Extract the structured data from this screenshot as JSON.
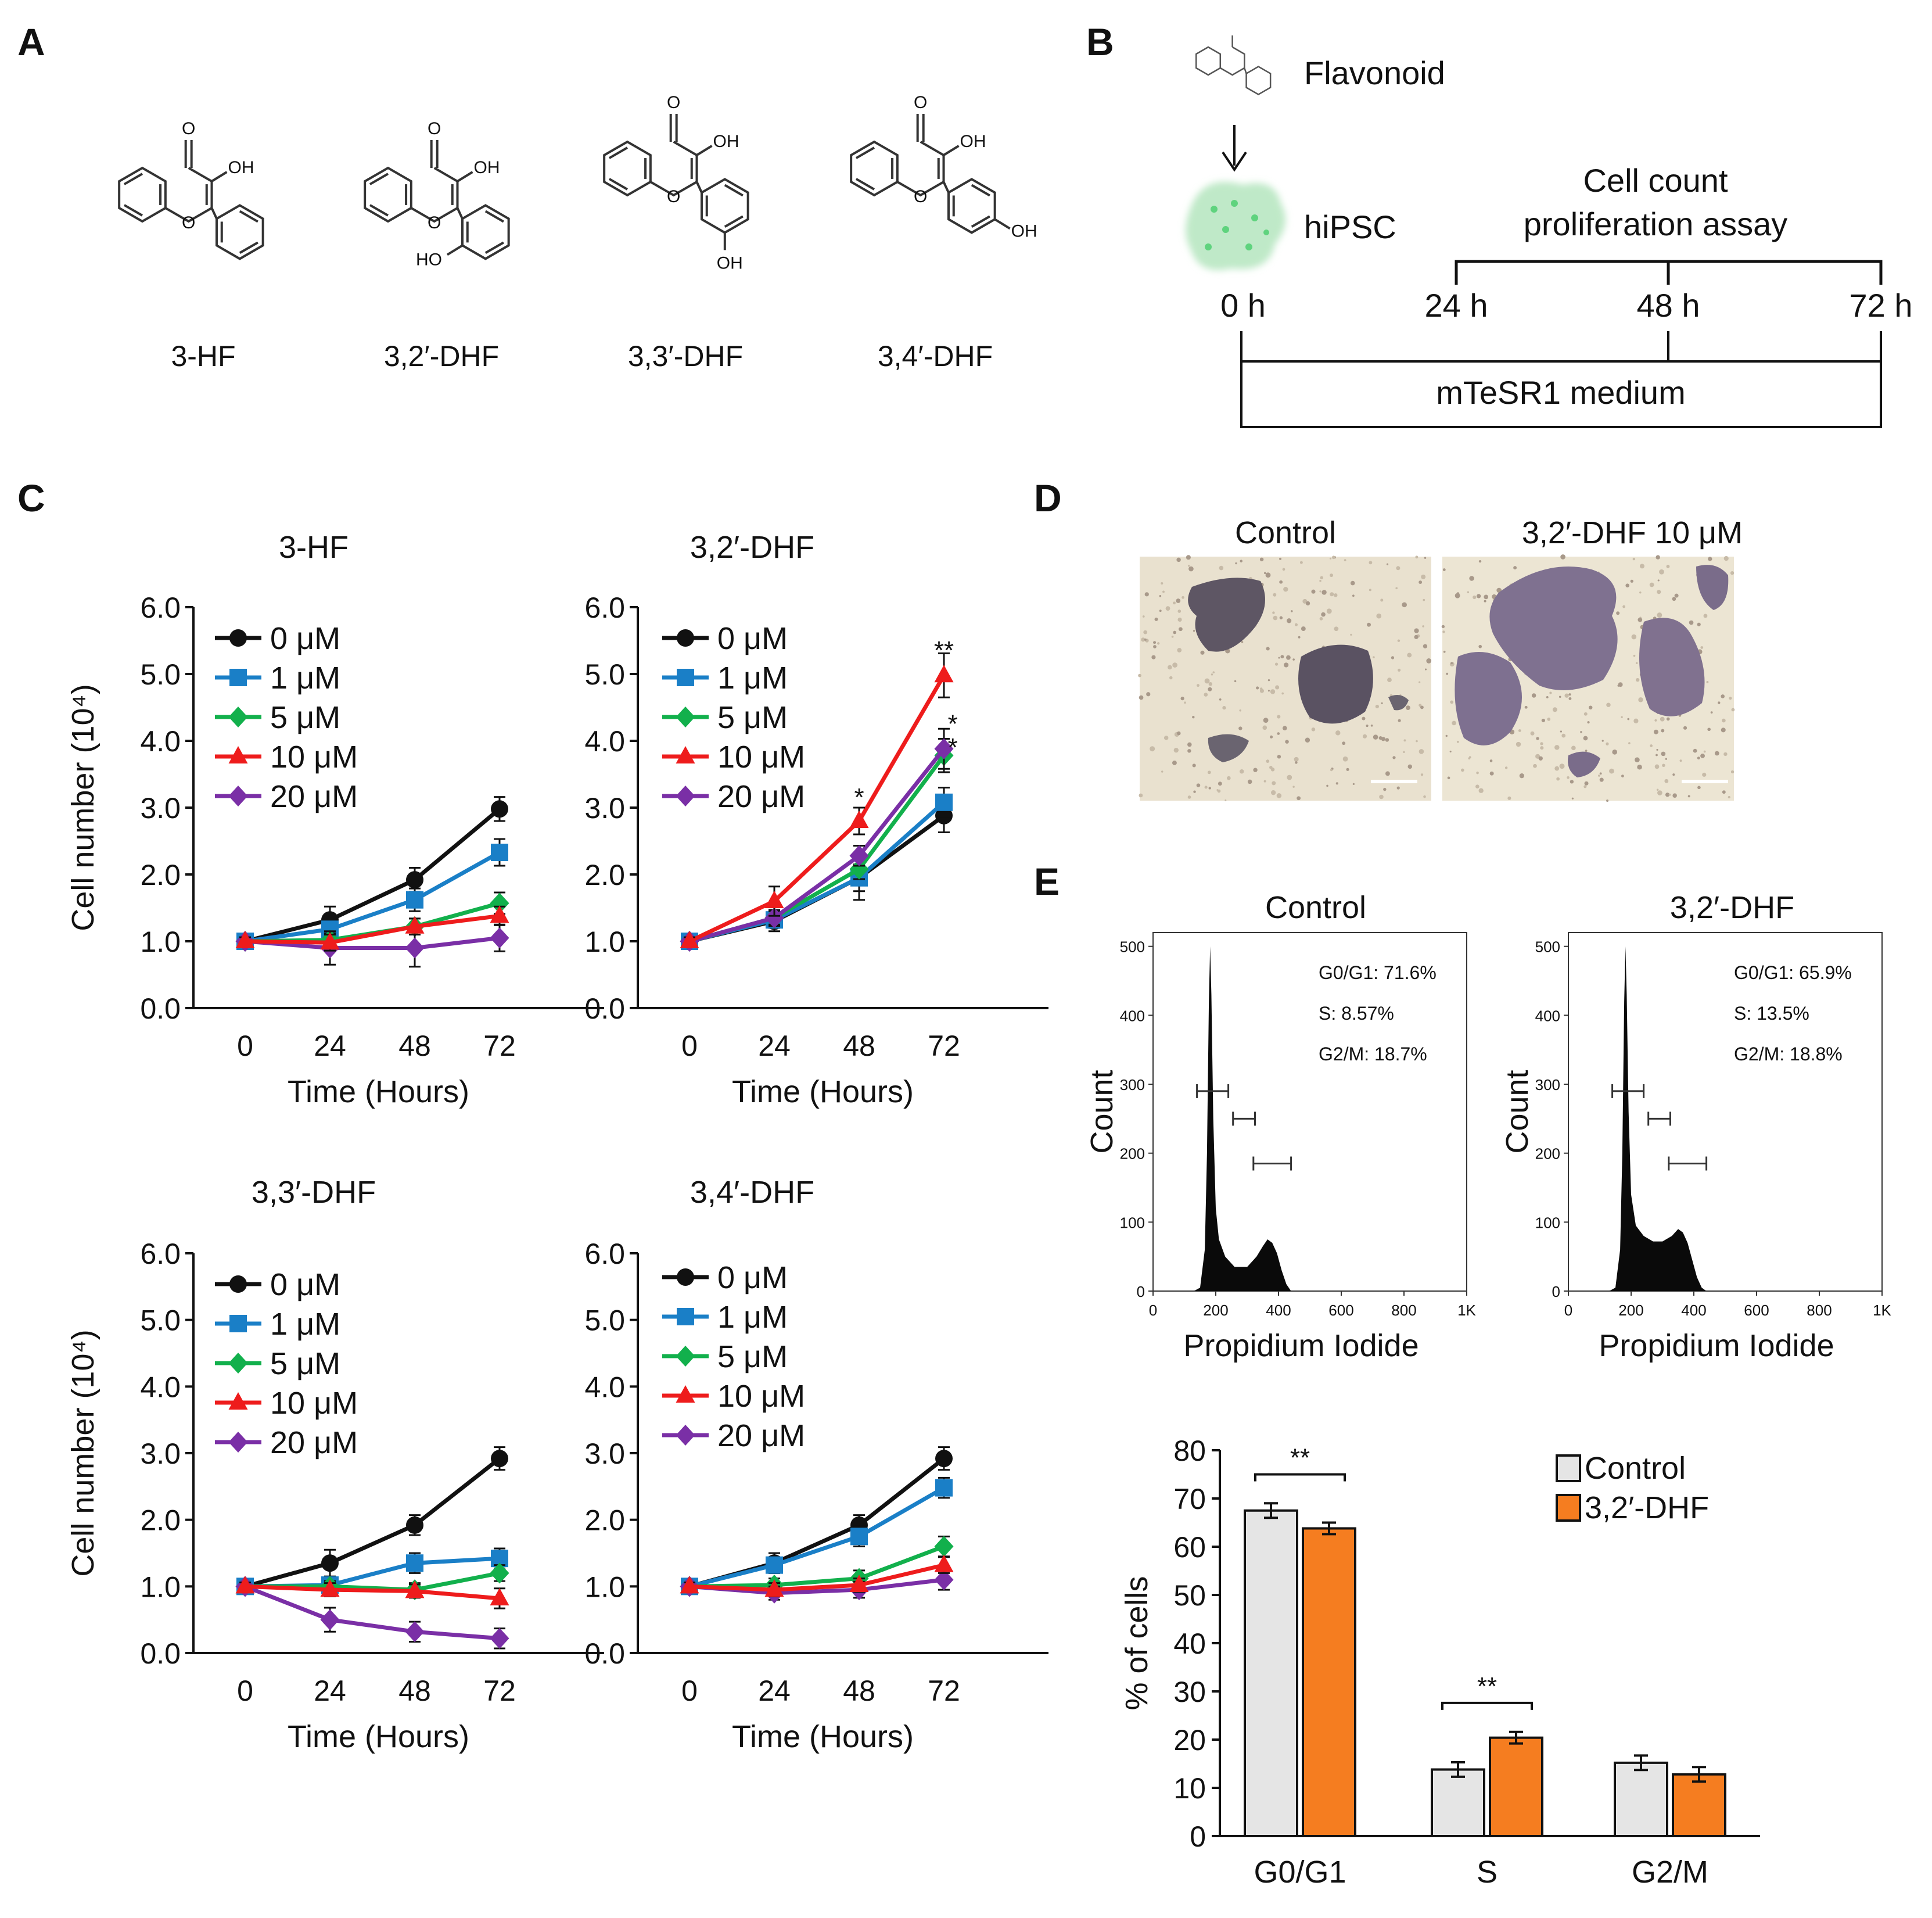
{
  "panels": {
    "a": "A",
    "b": "B",
    "c": "C",
    "d": "D",
    "e": "E"
  },
  "structures": {
    "oh": "OH",
    "o": "O",
    "ho": "HO",
    "names": [
      "3-HF",
      "3,2′-DHF",
      "3,3′-DHF",
      "3,4′-DHF"
    ]
  },
  "schematic": {
    "flavonoid": "Flavonoid",
    "cells": "hiPSC",
    "assay_line1": "Cell count",
    "assay_line2": "proliferation assay",
    "times": [
      "0 h",
      "24 h",
      "48 h",
      "72 h"
    ],
    "medium": "mTeSR1 medium"
  },
  "micrographs": {
    "control": "Control",
    "treated": "3,2′-DHF 10 μM"
  },
  "legend_labels": [
    "0 μM",
    "1 μM",
    "5 μM",
    "10 μM",
    "20 μM"
  ],
  "colors": {
    "c0": "#111111",
    "c1": "#1a7fc7",
    "c5": "#12b04c",
    "c10": "#ee1c1c",
    "c20": "#7a2fa6",
    "control_bar": "#e5e5e5",
    "dhf_bar": "#f57d20"
  },
  "chart_data": [
    {
      "type": "line",
      "title": "3-HF",
      "xlabel": "Time (Hours)",
      "ylabel": "Cell number (10⁴)",
      "x": [
        0,
        24,
        48,
        72
      ],
      "ylim": [
        0,
        6
      ],
      "yticks": [
        "0.0",
        "1.0",
        "2.0",
        "3.0",
        "4.0",
        "5.0",
        "6.0"
      ],
      "series": [
        {
          "name": "0 μM",
          "values": [
            1.0,
            1.32,
            1.92,
            2.98
          ],
          "err": [
            0.06,
            0.2,
            0.18,
            0.18
          ]
        },
        {
          "name": "1 μM",
          "values": [
            1.0,
            1.18,
            1.62,
            2.33
          ],
          "err": [
            0.06,
            0.15,
            0.17,
            0.2
          ]
        },
        {
          "name": "5 μM",
          "values": [
            1.0,
            1.02,
            1.22,
            1.57
          ],
          "err": [
            0.06,
            0.1,
            0.12,
            0.16
          ]
        },
        {
          "name": "10 μM",
          "values": [
            1.0,
            0.98,
            1.22,
            1.38
          ],
          "err": [
            0.06,
            0.12,
            0.12,
            0.14
          ]
        },
        {
          "name": "20 μM",
          "values": [
            1.0,
            0.9,
            0.9,
            1.05
          ],
          "err": [
            0.06,
            0.25,
            0.28,
            0.2
          ]
        }
      ],
      "annotations": []
    },
    {
      "type": "line",
      "title": "3,2′-DHF",
      "xlabel": "Time (Hours)",
      "ylabel": "",
      "x": [
        0,
        24,
        48,
        72
      ],
      "ylim": [
        0,
        6
      ],
      "yticks": [
        "0.0",
        "1.0",
        "2.0",
        "3.0",
        "4.0",
        "5.0",
        "6.0"
      ],
      "series": [
        {
          "name": "0 μM",
          "values": [
            1.0,
            1.3,
            1.95,
            2.88
          ],
          "err": [
            0.06,
            0.15,
            0.33,
            0.25
          ]
        },
        {
          "name": "1 μM",
          "values": [
            1.0,
            1.32,
            1.95,
            3.08
          ],
          "err": [
            0.06,
            0.12,
            0.2,
            0.22
          ]
        },
        {
          "name": "5 μM",
          "values": [
            1.0,
            1.35,
            2.08,
            3.78
          ],
          "err": [
            0.06,
            0.1,
            0.15,
            0.25
          ]
        },
        {
          "name": "10 μM",
          "values": [
            1.0,
            1.6,
            2.8,
            4.98
          ],
          "err": [
            0.06,
            0.22,
            0.2,
            0.33
          ]
        },
        {
          "name": "20 μM",
          "values": [
            1.0,
            1.35,
            2.28,
            3.88
          ],
          "err": [
            0.06,
            0.12,
            0.15,
            0.3
          ]
        }
      ],
      "annotations": [
        {
          "x": 48,
          "y": 3.2,
          "text": "*"
        },
        {
          "x": 72,
          "y": 5.4,
          "text": "**"
        },
        {
          "x": 74.5,
          "y": 4.3,
          "text": "*"
        },
        {
          "x": 74.5,
          "y": 3.95,
          "text": "*"
        }
      ]
    },
    {
      "type": "line",
      "title": "3,3′-DHF",
      "xlabel": "Time (Hours)",
      "ylabel": "Cell number (10⁴)",
      "x": [
        0,
        24,
        48,
        72
      ],
      "ylim": [
        0,
        6
      ],
      "yticks": [
        "0.0",
        "1.0",
        "2.0",
        "3.0",
        "4.0",
        "5.0",
        "6.0"
      ],
      "series": [
        {
          "name": "0 μM",
          "values": [
            1.0,
            1.35,
            1.92,
            2.92
          ],
          "err": [
            0.06,
            0.2,
            0.15,
            0.17
          ]
        },
        {
          "name": "1 μM",
          "values": [
            1.0,
            1.02,
            1.35,
            1.42
          ],
          "err": [
            0.06,
            0.1,
            0.15,
            0.15
          ]
        },
        {
          "name": "5 μM",
          "values": [
            1.0,
            1.0,
            0.95,
            1.2
          ],
          "err": [
            0.06,
            0.08,
            0.1,
            0.12
          ]
        },
        {
          "name": "10 μM",
          "values": [
            1.0,
            0.95,
            0.93,
            0.82
          ],
          "err": [
            0.06,
            0.1,
            0.1,
            0.15
          ]
        },
        {
          "name": "20 μM",
          "values": [
            1.0,
            0.5,
            0.32,
            0.22
          ],
          "err": [
            0.06,
            0.18,
            0.15,
            0.15
          ]
        }
      ],
      "annotations": []
    },
    {
      "type": "line",
      "title": "3,4′-DHF",
      "xlabel": "Time (Hours)",
      "ylabel": "",
      "x": [
        0,
        24,
        48,
        72
      ],
      "ylim": [
        0,
        6
      ],
      "yticks": [
        "0.0",
        "1.0",
        "2.0",
        "3.0",
        "4.0",
        "5.0",
        "6.0"
      ],
      "series": [
        {
          "name": "0 μM",
          "values": [
            1.0,
            1.35,
            1.92,
            2.92
          ],
          "err": [
            0.06,
            0.15,
            0.15,
            0.17
          ]
        },
        {
          "name": "1 μM",
          "values": [
            1.0,
            1.32,
            1.75,
            2.48
          ],
          "err": [
            0.06,
            0.12,
            0.15,
            0.15
          ]
        },
        {
          "name": "5 μM",
          "values": [
            1.0,
            1.02,
            1.12,
            1.6
          ],
          "err": [
            0.06,
            0.1,
            0.12,
            0.15
          ]
        },
        {
          "name": "10 μM",
          "values": [
            1.0,
            0.95,
            1.02,
            1.32
          ],
          "err": [
            0.06,
            0.1,
            0.1,
            0.12
          ]
        },
        {
          "name": "20 μM",
          "values": [
            1.0,
            0.9,
            0.95,
            1.1
          ],
          "err": [
            0.06,
            0.1,
            0.12,
            0.15
          ]
        }
      ],
      "annotations": []
    },
    {
      "type": "histogram",
      "title": "Control",
      "xlabel": "Propidium  Iodide",
      "ylabel": "Count",
      "xticks": [
        "0",
        "200",
        "400",
        "600",
        "800",
        "1K"
      ],
      "yticks": [
        "0",
        "100",
        "200",
        "300",
        "400",
        "500"
      ],
      "ylim": [
        0,
        520
      ],
      "xlim": [
        0,
        1000
      ],
      "stats": [
        "G0/G1:  71.6%",
        "S:  8.57%",
        "G2/M:  18.7%"
      ]
    },
    {
      "type": "histogram",
      "title": "3,2′-DHF",
      "xlabel": "Propidium  Iodide",
      "ylabel": "Count",
      "xticks": [
        "0",
        "200",
        "400",
        "600",
        "800",
        "1K"
      ],
      "yticks": [
        "0",
        "100",
        "200",
        "300",
        "400",
        "500"
      ],
      "ylim": [
        0,
        520
      ],
      "xlim": [
        0,
        1000
      ],
      "stats": [
        "G0/G1:  65.9%",
        "S:  13.5%",
        "G2/M:  18.8%"
      ]
    },
    {
      "type": "bar",
      "title": "",
      "xlabel": "",
      "ylabel": "% of cells",
      "categories": [
        "G0/G1",
        "S",
        "G2/M"
      ],
      "ylim": [
        0,
        80
      ],
      "yticks": [
        "0",
        "10",
        "20",
        "30",
        "40",
        "50",
        "60",
        "70",
        "80"
      ],
      "series": [
        {
          "name": "Control",
          "values": [
            67.5,
            13.8,
            15.2
          ],
          "err": [
            1.5,
            1.5,
            1.5
          ]
        },
        {
          "name": "3,2′-DHF",
          "values": [
            63.8,
            20.4,
            12.8
          ],
          "err": [
            1.2,
            1.2,
            1.5
          ]
        }
      ],
      "annotations": [
        {
          "category": "G0/G1",
          "text": "**"
        },
        {
          "category": "S",
          "text": "**"
        }
      ]
    }
  ]
}
